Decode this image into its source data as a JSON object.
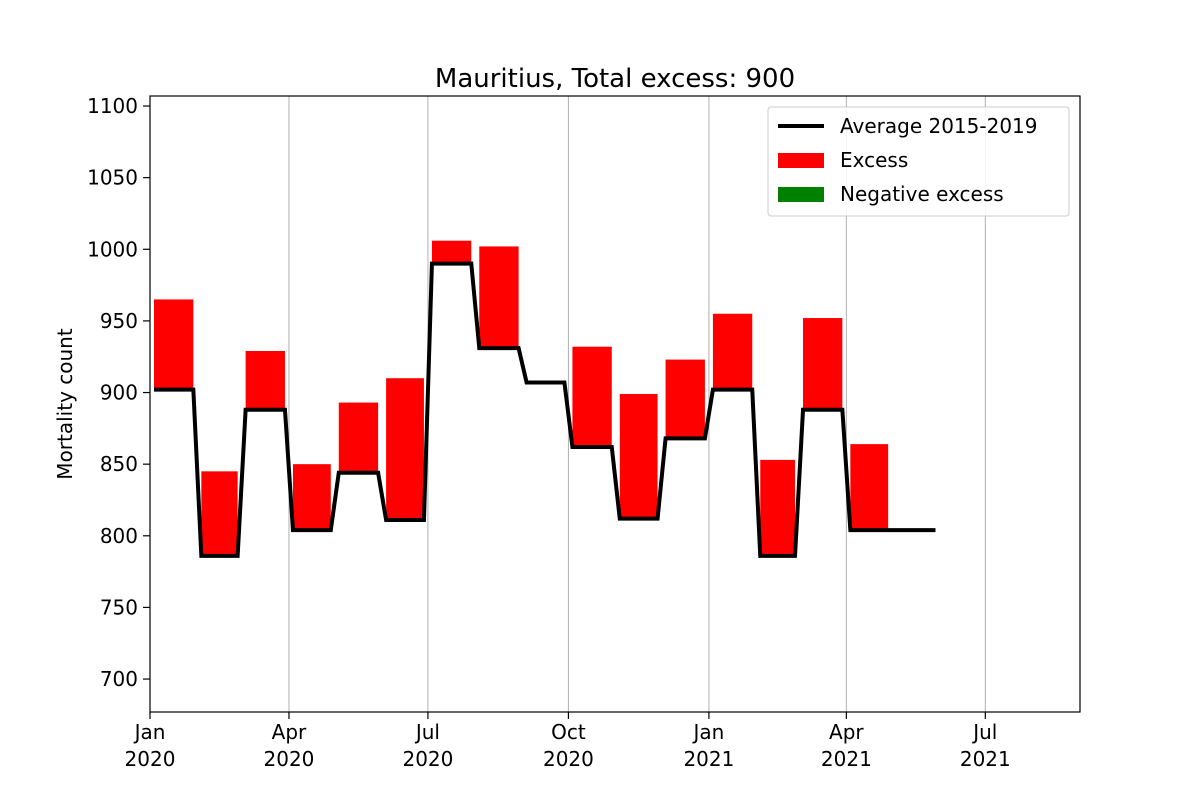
{
  "chart_data": {
    "type": "bar",
    "title": "Mauritius, Total excess: 900",
    "xlabel": "",
    "ylabel": "Mortality count",
    "ylim": [
      677,
      1107
    ],
    "xlim": [
      "2020-01-01",
      "2021-09-01"
    ],
    "grid": "x-only",
    "legend_position": "top-right",
    "yticks": [
      700,
      750,
      800,
      850,
      900,
      950,
      1000,
      1050,
      1100
    ],
    "xticks": [
      {
        "date": "2020-01-01",
        "label_line1": "Jan",
        "label_line2": "2020"
      },
      {
        "date": "2020-04-01",
        "label_line1": "Apr",
        "label_line2": "2020"
      },
      {
        "date": "2020-07-01",
        "label_line1": "Jul",
        "label_line2": "2020"
      },
      {
        "date": "2020-10-01",
        "label_line1": "Oct",
        "label_line2": "2020"
      },
      {
        "date": "2021-01-01",
        "label_line1": "Jan",
        "label_line2": "2021"
      },
      {
        "date": "2021-04-01",
        "label_line1": "Apr",
        "label_line2": "2021"
      },
      {
        "date": "2021-07-01",
        "label_line1": "Jul",
        "label_line2": "2021"
      }
    ],
    "months": [
      "2020-01",
      "2020-02",
      "2020-03",
      "2020-04",
      "2020-05",
      "2020-06",
      "2020-07",
      "2020-08",
      "2020-09",
      "2020-10",
      "2020-11",
      "2020-12",
      "2021-01",
      "2021-02",
      "2021-03",
      "2021-04",
      "2021-05"
    ],
    "series": [
      {
        "name": "Average 2015-2019",
        "kind": "step-line",
        "color": "#000000",
        "values": [
          902,
          786,
          888,
          804,
          844,
          811,
          990,
          931,
          907,
          862,
          812,
          868,
          902,
          786,
          888,
          804,
          804
        ]
      },
      {
        "name": "Excess",
        "kind": "bar",
        "color": "#ff0000",
        "values": [
          965,
          845,
          929,
          850,
          893,
          910,
          1006,
          1002,
          907,
          932,
          899,
          923,
          955,
          853,
          952,
          864,
          804
        ]
      },
      {
        "name": "Negative excess",
        "kind": "bar",
        "color": "#008000",
        "values": []
      }
    ]
  },
  "legend": [
    {
      "label": "Average 2015-2019",
      "swatch": "line",
      "color": "#000000"
    },
    {
      "label": "Excess",
      "swatch": "patch",
      "color": "#ff0000"
    },
    {
      "label": "Negative excess",
      "swatch": "patch",
      "color": "#008000"
    }
  ]
}
